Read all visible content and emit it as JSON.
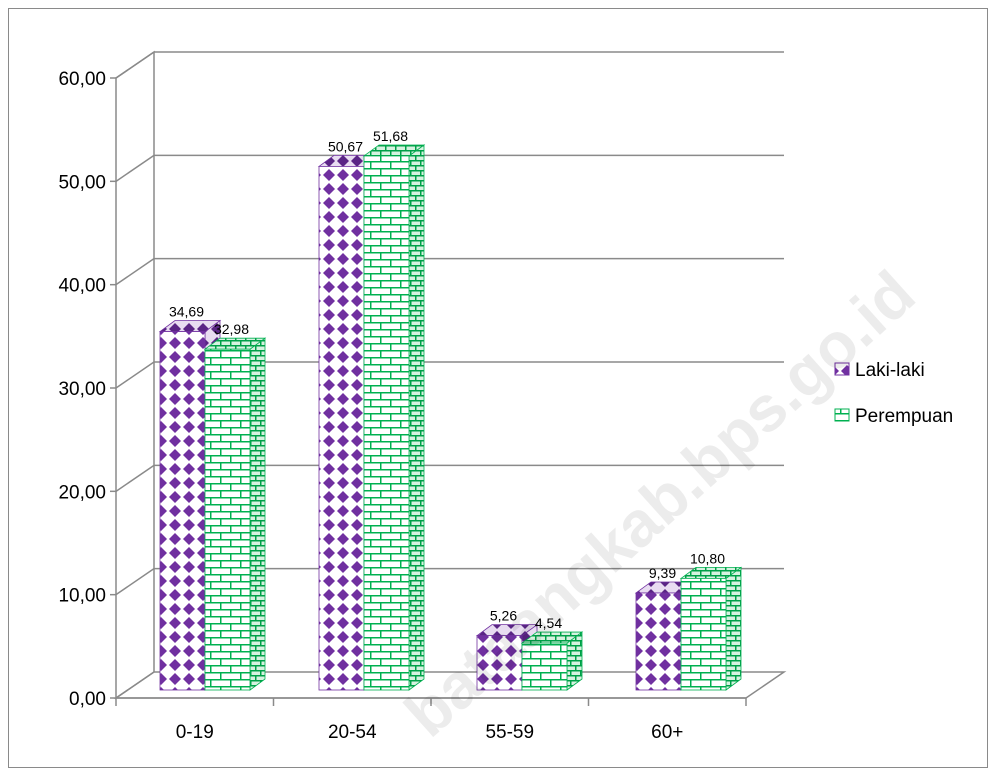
{
  "chart_data": {
    "type": "bar",
    "categories": [
      "0-19",
      "20-54",
      "55-59",
      "60+"
    ],
    "series": [
      {
        "name": "Laki-laki",
        "values": [
          34.69,
          50.67,
          5.26,
          9.39
        ],
        "labels": [
          "34,69",
          "50,67",
          "5,26",
          "9,39"
        ],
        "color": "#7030a0"
      },
      {
        "name": "Perempuan",
        "values": [
          32.98,
          51.68,
          4.54,
          10.8
        ],
        "labels": [
          "32,98",
          "51,68",
          "4,54",
          "10,80"
        ],
        "color": "#00b050"
      }
    ],
    "yticks": [
      "0,00",
      "10,00",
      "20,00",
      "30,00",
      "40,00",
      "50,00",
      "60,00"
    ],
    "ylim": [
      0,
      60
    ],
    "grid": true,
    "legend_position": "right",
    "title": "",
    "xlabel": "",
    "ylabel": ""
  },
  "watermark": "bataangkab.bps.go.id"
}
